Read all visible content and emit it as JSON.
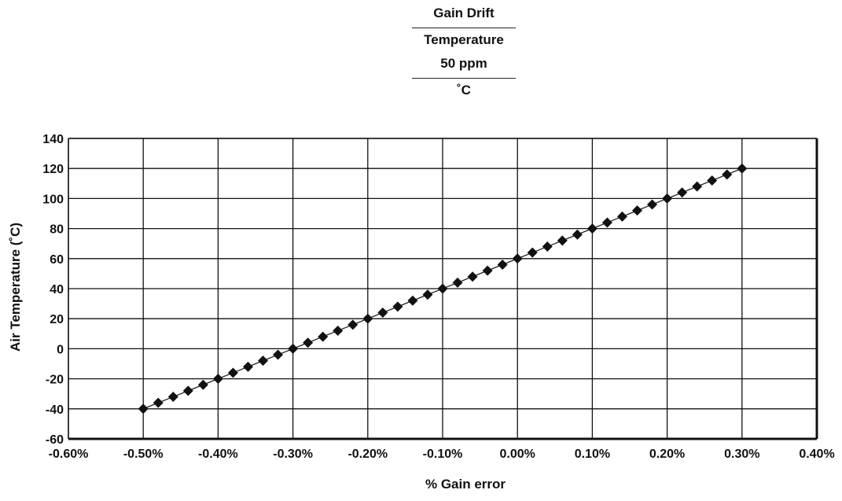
{
  "title": {
    "line1": "Gain Drift",
    "line2": "Temperature",
    "line3": "50 ppm",
    "line4": "˚C"
  },
  "chart_data": {
    "type": "line",
    "xlabel": "% Gain error",
    "ylabel": "Air Temperature (˚C)",
    "xlim": [
      -0.6,
      0.4
    ],
    "ylim": [
      -60,
      140
    ],
    "x_ticks": [
      "-0.60%",
      "-0.50%",
      "-0.40%",
      "-0.30%",
      "-0.20%",
      "-0.10%",
      "0.00%",
      "0.10%",
      "0.20%",
      "0.30%",
      "0.40%"
    ],
    "y_ticks": [
      "140",
      "120",
      "100",
      "80",
      "60",
      "40",
      "20",
      "0",
      "-20",
      "-40",
      "-60"
    ],
    "x_tick_values": [
      -0.6,
      -0.5,
      -0.4,
      -0.3,
      -0.2,
      -0.1,
      0.0,
      0.1,
      0.2,
      0.3,
      0.4
    ],
    "y_tick_values": [
      140,
      120,
      100,
      80,
      60,
      40,
      20,
      0,
      -20,
      -40,
      -60
    ],
    "grid": true,
    "series": [
      {
        "marker": "diamond",
        "color": "#111111",
        "points": [
          [
            -0.5,
            -40
          ],
          [
            -0.48,
            -36
          ],
          [
            -0.46,
            -32
          ],
          [
            -0.44,
            -28
          ],
          [
            -0.42,
            -24
          ],
          [
            -0.4,
            -20
          ],
          [
            -0.38,
            -16
          ],
          [
            -0.36,
            -12
          ],
          [
            -0.34,
            -8
          ],
          [
            -0.32,
            -4
          ],
          [
            -0.3,
            0
          ],
          [
            -0.28,
            4
          ],
          [
            -0.26,
            8
          ],
          [
            -0.24,
            12
          ],
          [
            -0.22,
            16
          ],
          [
            -0.2,
            20
          ],
          [
            -0.18,
            24
          ],
          [
            -0.16,
            28
          ],
          [
            -0.14,
            32
          ],
          [
            -0.12,
            36
          ],
          [
            -0.1,
            40
          ],
          [
            -0.08,
            44
          ],
          [
            -0.06,
            48
          ],
          [
            -0.04,
            52
          ],
          [
            -0.02,
            56
          ],
          [
            0.0,
            60
          ],
          [
            0.02,
            64
          ],
          [
            0.04,
            68
          ],
          [
            0.06,
            72
          ],
          [
            0.08,
            76
          ],
          [
            0.1,
            80
          ],
          [
            0.12,
            84
          ],
          [
            0.14,
            88
          ],
          [
            0.16,
            92
          ],
          [
            0.18,
            96
          ],
          [
            0.2,
            100
          ],
          [
            0.22,
            104
          ],
          [
            0.24,
            108
          ],
          [
            0.26,
            112
          ],
          [
            0.28,
            116
          ],
          [
            0.3,
            120
          ]
        ]
      }
    ]
  }
}
